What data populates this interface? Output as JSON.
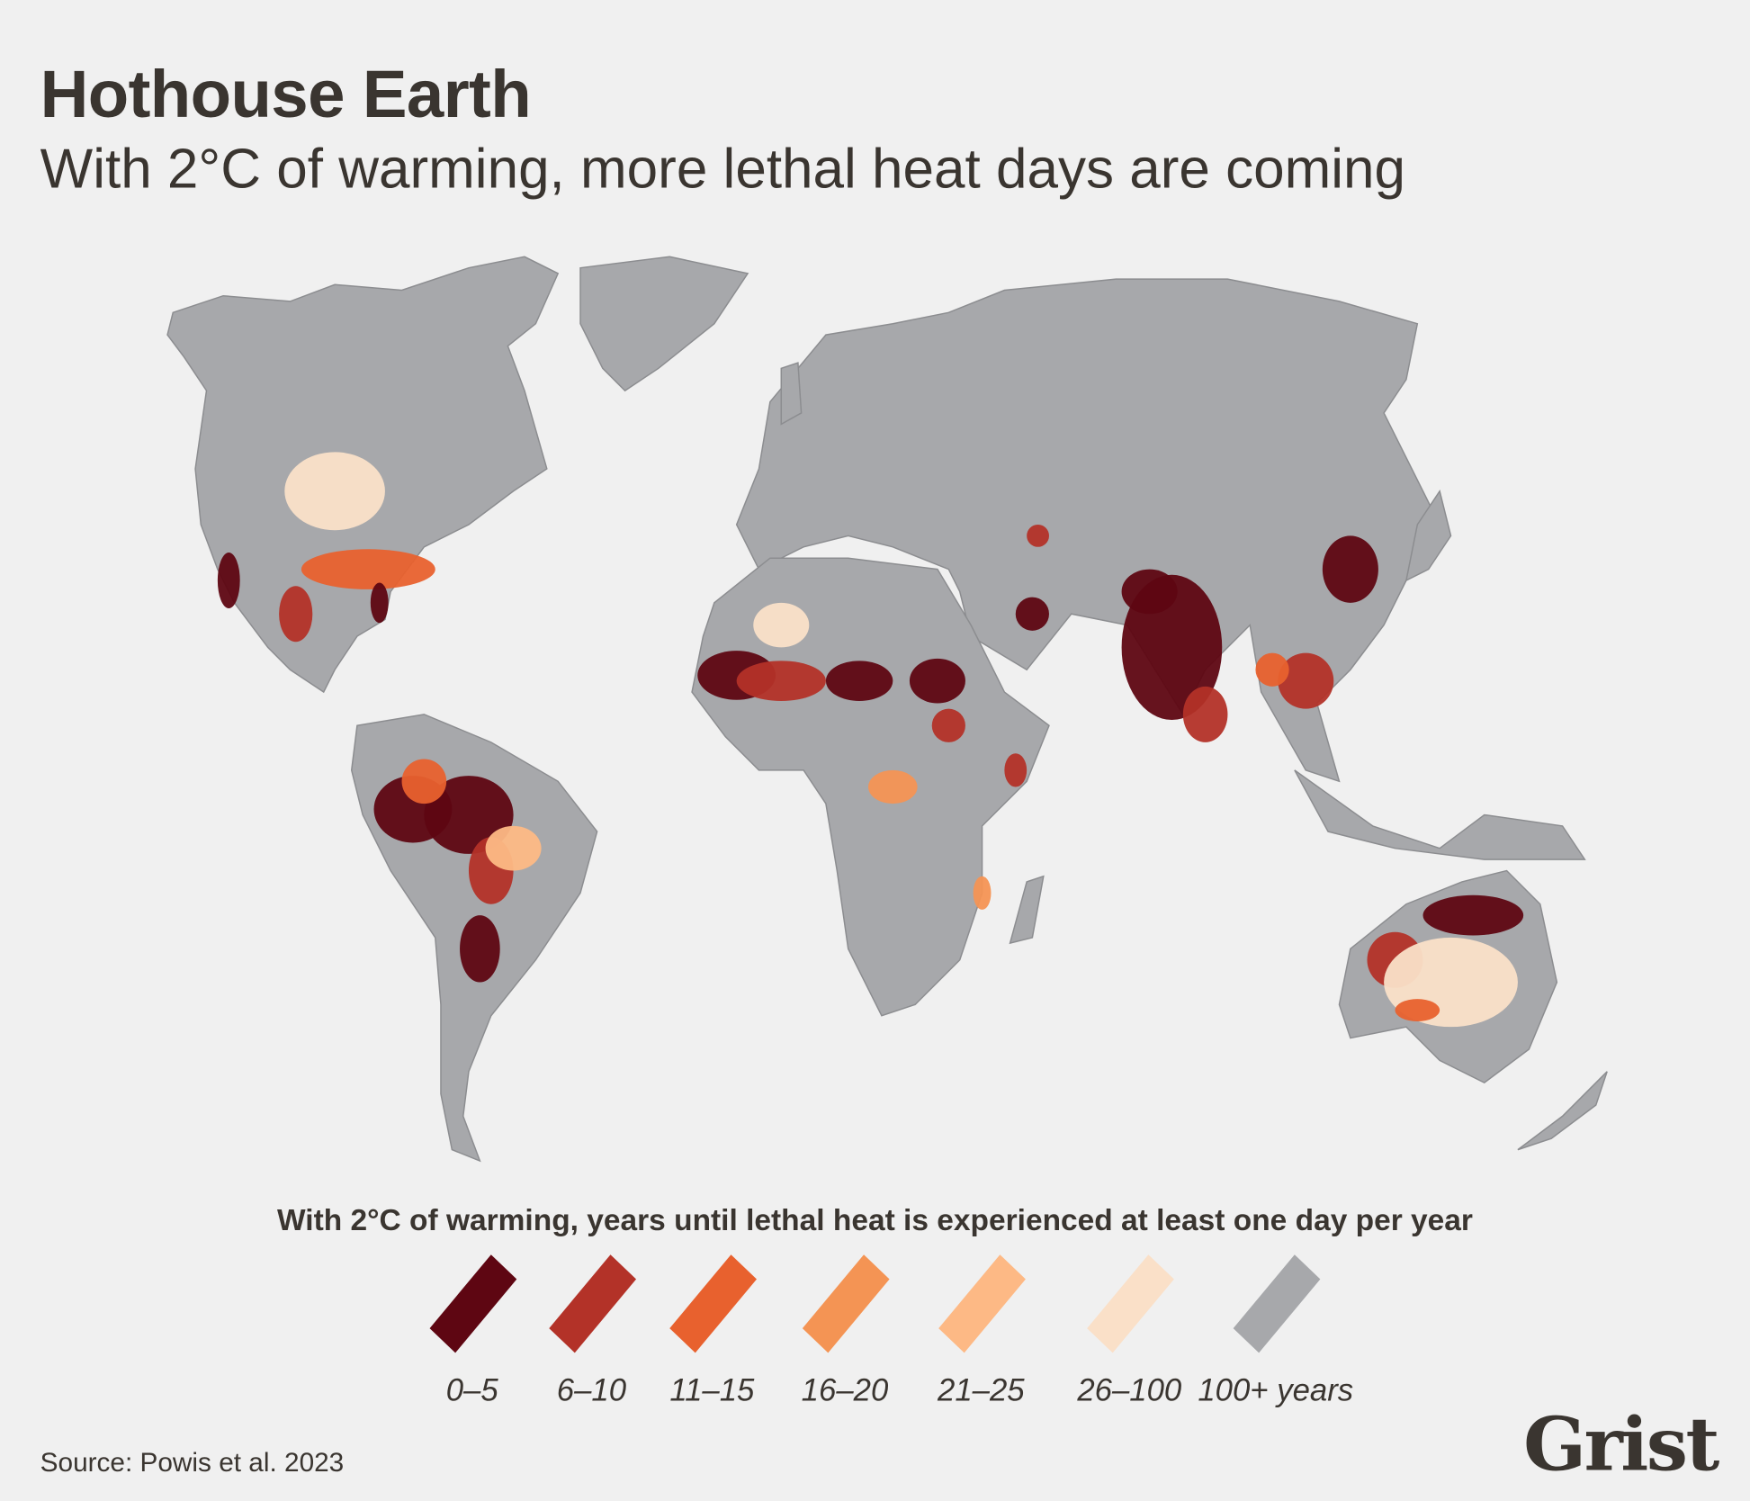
{
  "header": {
    "title": "Hothouse Earth",
    "subtitle": "With 2°C of warming, more lethal heat days are coming"
  },
  "map": {
    "land_color": "#a7a8ab",
    "border_color": "#8c8d90"
  },
  "legend": {
    "title": "With 2°C of warming, years until lethal heat is experienced at least one day per year",
    "items": [
      {
        "label": "0–5",
        "color": "#5e0612"
      },
      {
        "label": "6–10",
        "color": "#b33228"
      },
      {
        "label": "11–15",
        "color": "#e8612e"
      },
      {
        "label": "16–20",
        "color": "#f49454"
      },
      {
        "label": "21–25",
        "color": "#fdb985"
      },
      {
        "label": "26–100",
        "color": "#fae0c8"
      },
      {
        "label": "100+ years",
        "color": "#a7a8ab"
      }
    ]
  },
  "footer": {
    "source": "Source: Powis et al. 2023",
    "logo": "Grist"
  }
}
